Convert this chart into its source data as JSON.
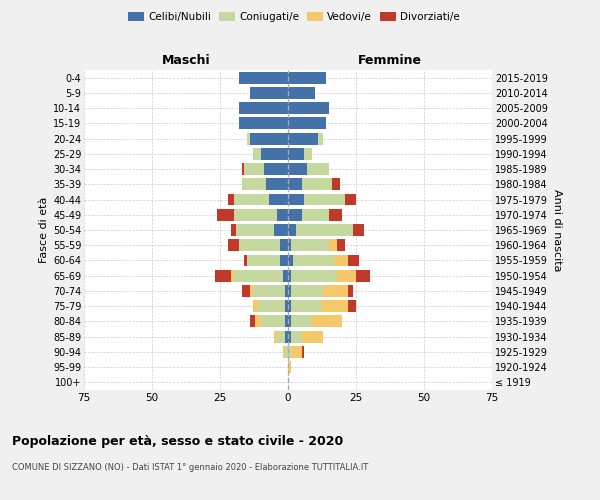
{
  "age_groups": [
    "100+",
    "95-99",
    "90-94",
    "85-89",
    "80-84",
    "75-79",
    "70-74",
    "65-69",
    "60-64",
    "55-59",
    "50-54",
    "45-49",
    "40-44",
    "35-39",
    "30-34",
    "25-29",
    "20-24",
    "15-19",
    "10-14",
    "5-9",
    "0-4"
  ],
  "birth_years": [
    "≤ 1919",
    "1920-1924",
    "1925-1929",
    "1930-1934",
    "1935-1939",
    "1940-1944",
    "1945-1949",
    "1950-1954",
    "1955-1959",
    "1960-1964",
    "1965-1969",
    "1970-1974",
    "1975-1979",
    "1980-1984",
    "1985-1989",
    "1990-1994",
    "1995-1999",
    "2000-2004",
    "2005-2009",
    "2010-2014",
    "2015-2019"
  ],
  "maschi": {
    "celibi": [
      0,
      0,
      0,
      1,
      1,
      1,
      1,
      2,
      3,
      3,
      5,
      4,
      7,
      8,
      9,
      10,
      14,
      18,
      18,
      14,
      18
    ],
    "coniugati": [
      0,
      0,
      1,
      3,
      9,
      10,
      12,
      18,
      12,
      15,
      14,
      16,
      13,
      9,
      7,
      3,
      1,
      0,
      0,
      0,
      0
    ],
    "vedovi": [
      0,
      0,
      1,
      1,
      2,
      2,
      1,
      1,
      0,
      0,
      0,
      0,
      0,
      0,
      0,
      0,
      0,
      0,
      0,
      0,
      0
    ],
    "divorziati": [
      0,
      0,
      0,
      0,
      2,
      0,
      3,
      6,
      1,
      4,
      2,
      6,
      2,
      0,
      1,
      0,
      0,
      0,
      0,
      0,
      0
    ]
  },
  "femmine": {
    "nubili": [
      0,
      0,
      0,
      1,
      1,
      1,
      1,
      1,
      2,
      1,
      3,
      5,
      6,
      5,
      7,
      6,
      11,
      14,
      15,
      10,
      14
    ],
    "coniugate": [
      0,
      0,
      1,
      4,
      8,
      11,
      12,
      17,
      15,
      14,
      21,
      10,
      15,
      11,
      8,
      3,
      2,
      0,
      0,
      0,
      0
    ],
    "vedove": [
      0,
      1,
      4,
      8,
      11,
      10,
      9,
      7,
      5,
      3,
      0,
      0,
      0,
      0,
      0,
      0,
      0,
      0,
      0,
      0,
      0
    ],
    "divorziate": [
      0,
      0,
      1,
      0,
      0,
      3,
      2,
      5,
      4,
      3,
      4,
      5,
      4,
      3,
      0,
      0,
      0,
      0,
      0,
      0,
      0
    ]
  },
  "colors": {
    "celibi": "#4472a8",
    "coniugati": "#c5d8a0",
    "vedovi": "#f5c96a",
    "divorziati": "#c0392b"
  },
  "xlim": 75,
  "title": "Popolazione per età, sesso e stato civile - 2020",
  "subtitle": "COMUNE DI SIZZANO (NO) - Dati ISTAT 1° gennaio 2020 - Elaborazione TUTTITALIA.IT",
  "ylabel_left": "Fasce di età",
  "ylabel_right": "Anni di nascita",
  "xlabel_left": "Maschi",
  "xlabel_right": "Femmine",
  "background_color": "#f0f0f0",
  "plot_background": "#ffffff",
  "legend_labels": [
    "Celibi/Nubili",
    "Coniugati/e",
    "Vedovi/e",
    "Divorziati/e"
  ]
}
